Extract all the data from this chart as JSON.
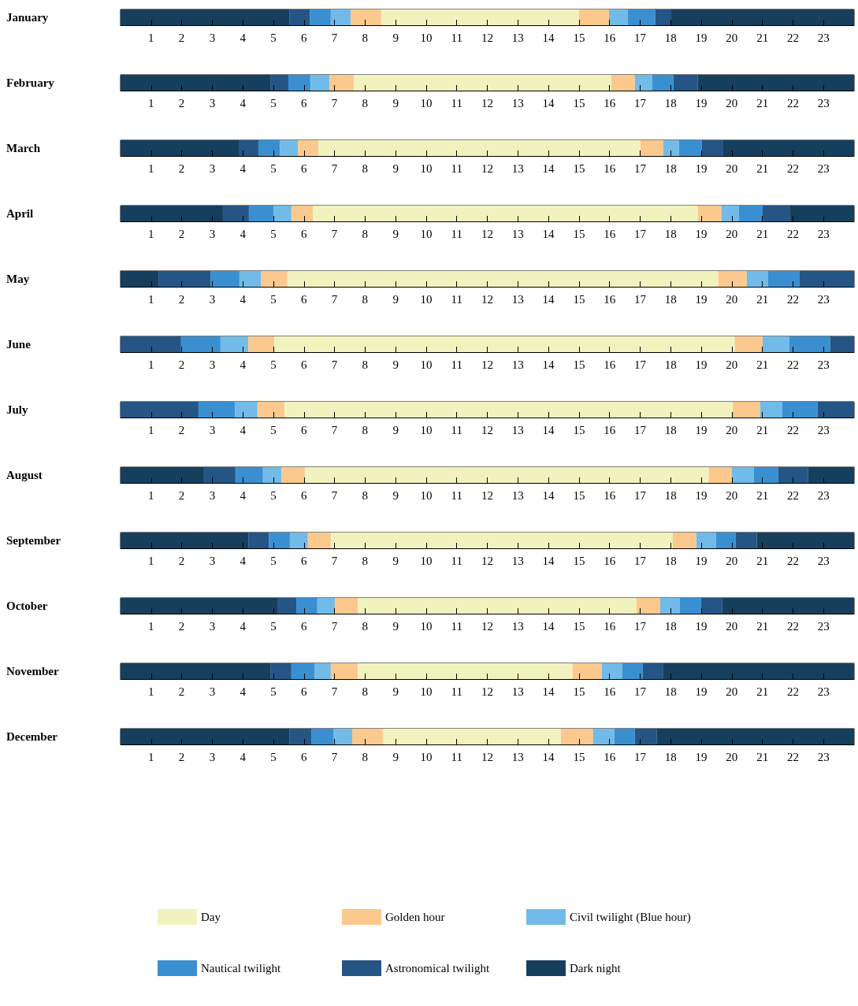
{
  "chart_data": [
    {
      "type": "bar",
      "orientation": "horizontal",
      "stacked": true,
      "categories": [
        "January"
      ],
      "xlim": [
        0,
        24
      ],
      "xticks": [
        1,
        2,
        3,
        4,
        5,
        6,
        7,
        8,
        9,
        10,
        11,
        12,
        13,
        14,
        15,
        16,
        17,
        18,
        19,
        20,
        21,
        22,
        23
      ],
      "series": [
        {
          "color": "#163f5e",
          "values": [
            5.52
          ]
        },
        {
          "color": "#245585",
          "values": [
            0.67
          ]
        },
        {
          "color": "#3a8fd0",
          "values": [
            0.69
          ]
        },
        {
          "color": "#72bbe8",
          "values": [
            0.65
          ]
        },
        {
          "color": "#fbc98e",
          "values": [
            1.0
          ]
        },
        {
          "color": "#f1f2bd",
          "values": [
            6.47
          ]
        },
        {
          "color": "#fbc98e",
          "values": [
            0.98
          ]
        },
        {
          "color": "#72bbe8",
          "values": [
            0.62
          ]
        },
        {
          "color": "#3a8fd0",
          "values": [
            0.9
          ]
        },
        {
          "color": "#245585",
          "values": [
            0.52
          ]
        },
        {
          "color": "#163f5e",
          "values": [
            5.98
          ]
        }
      ]
    },
    {
      "type": "bar",
      "orientation": "horizontal",
      "stacked": true,
      "categories": [
        "February"
      ],
      "xlim": [
        0,
        24
      ],
      "xticks": [
        1,
        2,
        3,
        4,
        5,
        6,
        7,
        8,
        9,
        10,
        11,
        12,
        13,
        14,
        15,
        16,
        17,
        18,
        19,
        20,
        21,
        22,
        23
      ],
      "series": [
        {
          "color": "#163f5e",
          "values": [
            4.9
          ]
        },
        {
          "color": "#245585",
          "values": [
            0.59
          ]
        },
        {
          "color": "#3a8fd0",
          "values": [
            0.72
          ]
        },
        {
          "color": "#72bbe8",
          "values": [
            0.62
          ]
        },
        {
          "color": "#fbc98e",
          "values": [
            0.8
          ]
        },
        {
          "color": "#f1f2bd",
          "values": [
            8.43
          ]
        },
        {
          "color": "#fbc98e",
          "values": [
            0.77
          ]
        },
        {
          "color": "#72bbe8",
          "values": [
            0.57
          ]
        },
        {
          "color": "#3a8fd0",
          "values": [
            0.69
          ]
        },
        {
          "color": "#245585",
          "values": [
            0.8
          ]
        },
        {
          "color": "#163f5e",
          "values": [
            5.11
          ]
        }
      ]
    },
    {
      "type": "bar",
      "orientation": "horizontal",
      "stacked": true,
      "categories": [
        "March"
      ],
      "xlim": [
        0,
        24
      ],
      "xticks": [
        1,
        2,
        3,
        4,
        5,
        6,
        7,
        8,
        9,
        10,
        11,
        12,
        13,
        14,
        15,
        16,
        17,
        18,
        19,
        20,
        21,
        22,
        23
      ],
      "series": [
        {
          "color": "#163f5e",
          "values": [
            3.89
          ]
        },
        {
          "color": "#245585",
          "values": [
            0.62
          ]
        },
        {
          "color": "#3a8fd0",
          "values": [
            0.7
          ]
        },
        {
          "color": "#72bbe8",
          "values": [
            0.59
          ]
        },
        {
          "color": "#fbc98e",
          "values": [
            0.67
          ]
        },
        {
          "color": "#f1f2bd",
          "values": [
            10.54
          ]
        },
        {
          "color": "#fbc98e",
          "values": [
            0.75
          ]
        },
        {
          "color": "#72bbe8",
          "values": [
            0.51
          ]
        },
        {
          "color": "#3a8fd0",
          "values": [
            0.75
          ]
        },
        {
          "color": "#245585",
          "values": [
            0.7
          ]
        },
        {
          "color": "#163f5e",
          "values": [
            4.28
          ]
        }
      ]
    },
    {
      "type": "bar",
      "orientation": "horizontal",
      "stacked": true,
      "categories": [
        "April"
      ],
      "xlim": [
        0,
        24
      ],
      "xticks": [
        1,
        2,
        3,
        4,
        5,
        6,
        7,
        8,
        9,
        10,
        11,
        12,
        13,
        14,
        15,
        16,
        17,
        18,
        19,
        20,
        21,
        22,
        23
      ],
      "series": [
        {
          "color": "#163f5e",
          "values": [
            3.35
          ]
        },
        {
          "color": "#245585",
          "values": [
            0.85
          ]
        },
        {
          "color": "#3a8fd0",
          "values": [
            0.8
          ]
        },
        {
          "color": "#72bbe8",
          "values": [
            0.59
          ]
        },
        {
          "color": "#fbc98e",
          "values": [
            0.7
          ]
        },
        {
          "color": "#f1f2bd",
          "values": [
            12.6
          ]
        },
        {
          "color": "#fbc98e",
          "values": [
            0.77
          ]
        },
        {
          "color": "#72bbe8",
          "values": [
            0.57
          ]
        },
        {
          "color": "#3a8fd0",
          "values": [
            0.78
          ]
        },
        {
          "color": "#245585",
          "values": [
            0.9
          ]
        },
        {
          "color": "#163f5e",
          "values": [
            2.09
          ]
        }
      ]
    },
    {
      "type": "bar",
      "orientation": "horizontal",
      "stacked": true,
      "categories": [
        "May"
      ],
      "xlim": [
        0,
        24
      ],
      "xticks": [
        1,
        2,
        3,
        4,
        5,
        6,
        7,
        8,
        9,
        10,
        11,
        12,
        13,
        14,
        15,
        16,
        17,
        18,
        19,
        20,
        21,
        22,
        23
      ],
      "series": [
        {
          "color": "#163f5e",
          "values": [
            1.24
          ]
        },
        {
          "color": "#245585",
          "values": [
            1.7
          ]
        },
        {
          "color": "#3a8fd0",
          "values": [
            0.95
          ]
        },
        {
          "color": "#72bbe8",
          "values": [
            0.7
          ]
        },
        {
          "color": "#fbc98e",
          "values": [
            0.87
          ]
        },
        {
          "color": "#f1f2bd",
          "values": [
            14.1
          ]
        },
        {
          "color": "#fbc98e",
          "values": [
            0.93
          ]
        },
        {
          "color": "#72bbe8",
          "values": [
            0.7
          ]
        },
        {
          "color": "#3a8fd0",
          "values": [
            1.03
          ]
        },
        {
          "color": "#245585",
          "values": [
            1.78
          ]
        }
      ]
    },
    {
      "type": "bar",
      "orientation": "horizontal",
      "stacked": true,
      "categories": [
        "June"
      ],
      "xlim": [
        0,
        24
      ],
      "xticks": [
        1,
        2,
        3,
        4,
        5,
        6,
        7,
        8,
        9,
        10,
        11,
        12,
        13,
        14,
        15,
        16,
        17,
        18,
        19,
        20,
        21,
        22,
        23
      ],
      "series": [
        {
          "color": "#245585",
          "values": [
            1.98
          ]
        },
        {
          "color": "#3a8fd0",
          "values": [
            1.29
          ]
        },
        {
          "color": "#72bbe8",
          "values": [
            0.91
          ]
        },
        {
          "color": "#fbc98e",
          "values": [
            0.85
          ]
        },
        {
          "color": "#f1f2bd",
          "values": [
            15.07
          ]
        },
        {
          "color": "#fbc98e",
          "values": [
            0.91
          ]
        },
        {
          "color": "#72bbe8",
          "values": [
            0.87
          ]
        },
        {
          "color": "#3a8fd0",
          "values": [
            1.34
          ]
        },
        {
          "color": "#245585",
          "values": [
            0.78
          ]
        }
      ]
    },
    {
      "type": "bar",
      "orientation": "horizontal",
      "stacked": true,
      "categories": [
        "July"
      ],
      "xlim": [
        0,
        24
      ],
      "xticks": [
        1,
        2,
        3,
        4,
        5,
        6,
        7,
        8,
        9,
        10,
        11,
        12,
        13,
        14,
        15,
        16,
        17,
        18,
        19,
        20,
        21,
        22,
        23
      ],
      "series": [
        {
          "color": "#245585",
          "values": [
            2.55
          ]
        },
        {
          "color": "#3a8fd0",
          "values": [
            1.19
          ]
        },
        {
          "color": "#72bbe8",
          "values": [
            0.74
          ]
        },
        {
          "color": "#fbc98e",
          "values": [
            0.88
          ]
        },
        {
          "color": "#f1f2bd",
          "values": [
            14.67
          ]
        },
        {
          "color": "#fbc98e",
          "values": [
            0.9
          ]
        },
        {
          "color": "#72bbe8",
          "values": [
            0.72
          ]
        },
        {
          "color": "#3a8fd0",
          "values": [
            1.16
          ]
        },
        {
          "color": "#245585",
          "values": [
            1.19
          ]
        }
      ]
    },
    {
      "type": "bar",
      "orientation": "horizontal",
      "stacked": true,
      "categories": [
        "August"
      ],
      "xlim": [
        0,
        24
      ],
      "xticks": [
        1,
        2,
        3,
        4,
        5,
        6,
        7,
        8,
        9,
        10,
        11,
        12,
        13,
        14,
        15,
        16,
        17,
        18,
        19,
        20,
        21,
        22,
        23
      ],
      "series": [
        {
          "color": "#163f5e",
          "values": [
            2.73
          ]
        },
        {
          "color": "#245585",
          "values": [
            1.03
          ]
        },
        {
          "color": "#3a8fd0",
          "values": [
            0.9
          ]
        },
        {
          "color": "#72bbe8",
          "values": [
            0.6
          ]
        },
        {
          "color": "#fbc98e",
          "values": [
            0.77
          ]
        },
        {
          "color": "#f1f2bd",
          "values": [
            13.22
          ]
        },
        {
          "color": "#fbc98e",
          "values": [
            0.75
          ]
        },
        {
          "color": "#72bbe8",
          "values": [
            0.72
          ]
        },
        {
          "color": "#3a8fd0",
          "values": [
            0.8
          ]
        },
        {
          "color": "#245585",
          "values": [
            0.98
          ]
        },
        {
          "color": "#163f5e",
          "values": [
            1.5
          ]
        }
      ]
    },
    {
      "type": "bar",
      "orientation": "horizontal",
      "stacked": true,
      "categories": [
        "September"
      ],
      "xlim": [
        0,
        24
      ],
      "xticks": [
        1,
        2,
        3,
        4,
        5,
        6,
        7,
        8,
        9,
        10,
        11,
        12,
        13,
        14,
        15,
        16,
        17,
        18,
        19,
        20,
        21,
        22,
        23
      ],
      "series": [
        {
          "color": "#163f5e",
          "values": [
            4.18
          ]
        },
        {
          "color": "#245585",
          "values": [
            0.67
          ]
        },
        {
          "color": "#3a8fd0",
          "values": [
            0.69
          ]
        },
        {
          "color": "#72bbe8",
          "values": [
            0.59
          ]
        },
        {
          "color": "#fbc98e",
          "values": [
            0.75
          ]
        },
        {
          "color": "#f1f2bd",
          "values": [
            11.19
          ]
        },
        {
          "color": "#fbc98e",
          "values": [
            0.77
          ]
        },
        {
          "color": "#72bbe8",
          "values": [
            0.64
          ]
        },
        {
          "color": "#3a8fd0",
          "values": [
            0.65
          ]
        },
        {
          "color": "#245585",
          "values": [
            0.69
          ]
        },
        {
          "color": "#163f5e",
          "values": [
            3.18
          ]
        }
      ]
    },
    {
      "type": "bar",
      "orientation": "horizontal",
      "stacked": true,
      "categories": [
        "October"
      ],
      "xlim": [
        0,
        24
      ],
      "xticks": [
        1,
        2,
        3,
        4,
        5,
        6,
        7,
        8,
        9,
        10,
        11,
        12,
        13,
        14,
        15,
        16,
        17,
        18,
        19,
        20,
        21,
        22,
        23
      ],
      "series": [
        {
          "color": "#163f5e",
          "values": [
            5.13
          ]
        },
        {
          "color": "#245585",
          "values": [
            0.62
          ]
        },
        {
          "color": "#3a8fd0",
          "values": [
            0.69
          ]
        },
        {
          "color": "#72bbe8",
          "values": [
            0.57
          ]
        },
        {
          "color": "#fbc98e",
          "values": [
            0.75
          ]
        },
        {
          "color": "#f1f2bd",
          "values": [
            9.12
          ]
        },
        {
          "color": "#fbc98e",
          "values": [
            0.77
          ]
        },
        {
          "color": "#72bbe8",
          "values": [
            0.65
          ]
        },
        {
          "color": "#3a8fd0",
          "values": [
            0.7
          ]
        },
        {
          "color": "#245585",
          "values": [
            0.69
          ]
        },
        {
          "color": "#163f5e",
          "values": [
            4.31
          ]
        }
      ]
    },
    {
      "type": "bar",
      "orientation": "horizontal",
      "stacked": true,
      "categories": [
        "November"
      ],
      "xlim": [
        0,
        24
      ],
      "xticks": [
        1,
        2,
        3,
        4,
        5,
        6,
        7,
        8,
        9,
        10,
        11,
        12,
        13,
        14,
        15,
        16,
        17,
        18,
        19,
        20,
        21,
        22,
        23
      ],
      "series": [
        {
          "color": "#163f5e",
          "values": [
            4.9
          ]
        },
        {
          "color": "#245585",
          "values": [
            0.69
          ]
        },
        {
          "color": "#3a8fd0",
          "values": [
            0.75
          ]
        },
        {
          "color": "#72bbe8",
          "values": [
            0.54
          ]
        },
        {
          "color": "#fbc98e",
          "values": [
            0.88
          ]
        },
        {
          "color": "#f1f2bd",
          "values": [
            7.03
          ]
        },
        {
          "color": "#fbc98e",
          "values": [
            0.96
          ]
        },
        {
          "color": "#72bbe8",
          "values": [
            0.67
          ]
        },
        {
          "color": "#3a8fd0",
          "values": [
            0.67
          ]
        },
        {
          "color": "#245585",
          "values": [
            0.67
          ]
        },
        {
          "color": "#163f5e",
          "values": [
            6.24
          ]
        }
      ]
    },
    {
      "type": "bar",
      "orientation": "horizontal",
      "stacked": true,
      "categories": [
        "December"
      ],
      "xlim": [
        0,
        24
      ],
      "xticks": [
        1,
        2,
        3,
        4,
        5,
        6,
        7,
        8,
        9,
        10,
        11,
        12,
        13,
        14,
        15,
        16,
        17,
        18,
        19,
        20,
        21,
        22,
        23
      ],
      "legend": "bottom",
      "series": [
        {
          "name": "Dark night",
          "color": "#163f5e",
          "values": [
            5.52
          ]
        },
        {
          "name": "Astronomical twilight",
          "color": "#245585",
          "values": [
            0.72
          ]
        },
        {
          "name": "Nautical twilight",
          "color": "#3a8fd0",
          "values": [
            0.72
          ]
        },
        {
          "name": "Civil twilight (Blue hour)",
          "color": "#72bbe8",
          "values": [
            0.62
          ]
        },
        {
          "name": "Golden hour",
          "color": "#fbc98e",
          "values": [
            1.0
          ]
        },
        {
          "name": "Day",
          "color": "#f1f2bd",
          "values": [
            5.83
          ]
        },
        {
          "color": "#fbc98e",
          "values": [
            1.05
          ]
        },
        {
          "color": "#72bbe8",
          "values": [
            0.7
          ]
        },
        {
          "color": "#3a8fd0",
          "values": [
            0.67
          ]
        },
        {
          "color": "#245585",
          "values": [
            0.72
          ]
        },
        {
          "color": "#163f5e",
          "values": [
            6.45
          ]
        }
      ]
    }
  ]
}
